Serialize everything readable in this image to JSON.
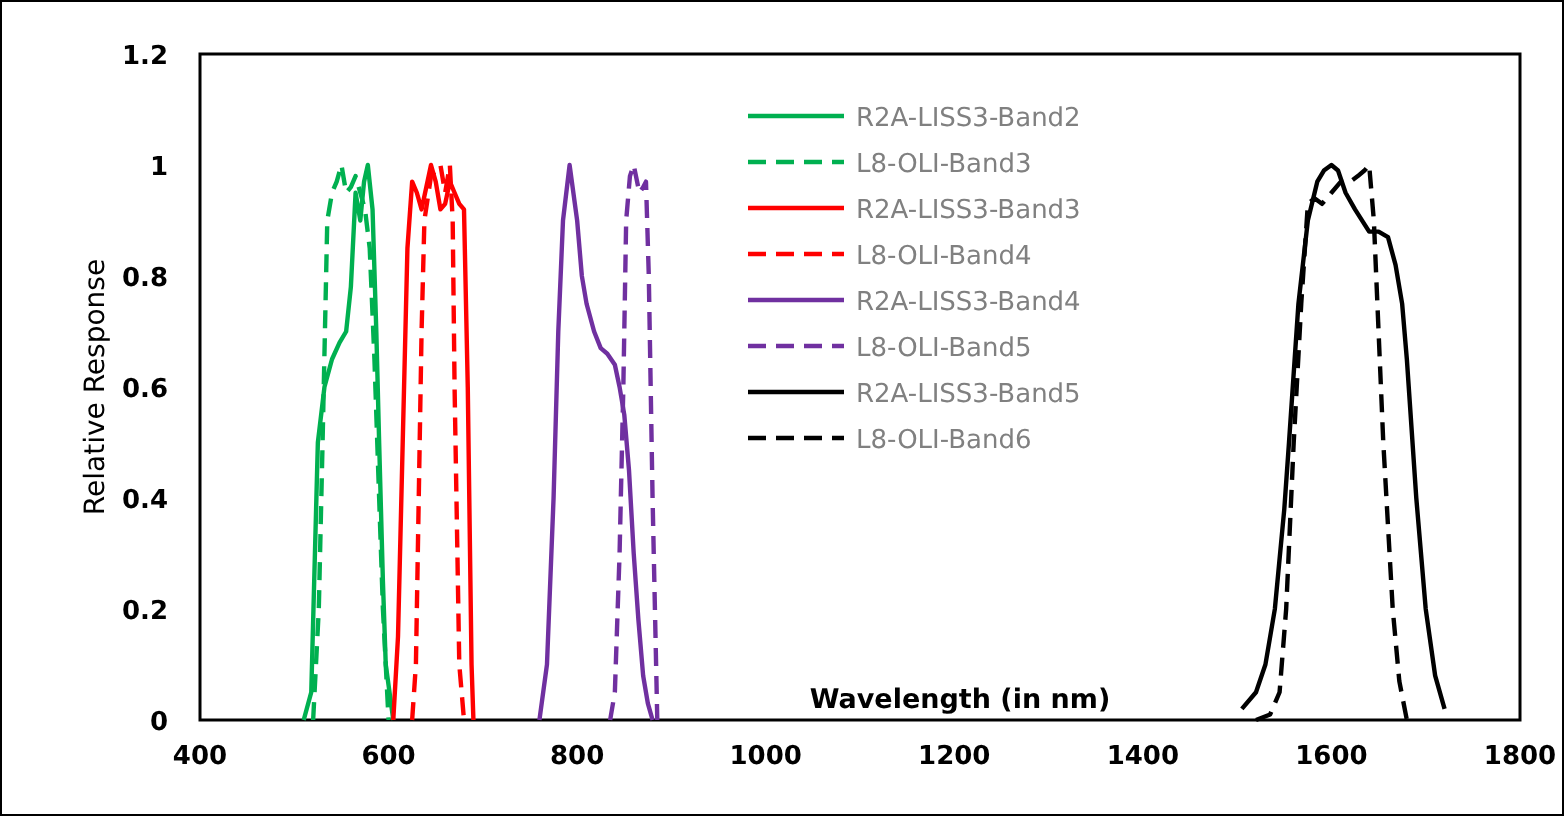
{
  "chart_data": {
    "type": "line",
    "xlabel": "Wavelength (in nm)",
    "ylabel": "Relative Response",
    "xlim": [
      400,
      1800
    ],
    "xticks": [
      400,
      600,
      800,
      1000,
      1200,
      1400,
      1600,
      1800
    ],
    "ylim": [
      0,
      1.2
    ],
    "yticks": [
      0,
      0.2,
      0.4,
      0.6,
      0.8,
      1,
      1.2
    ],
    "grid": false,
    "legend": "top",
    "series": [
      {
        "name": "R2A-LISS3-Band2",
        "color": "#00b050",
        "line_style": "solid",
        "x": [
          510,
          518,
          525,
          532,
          540,
          548,
          555,
          560,
          565,
          570,
          574,
          578,
          583,
          587,
          590,
          594,
          597,
          605
        ],
        "values": [
          0,
          0.05,
          0.5,
          0.6,
          0.65,
          0.68,
          0.7,
          0.78,
          0.95,
          0.9,
          0.97,
          1.0,
          0.92,
          0.7,
          0.5,
          0.25,
          0.1,
          0
        ]
      },
      {
        "name": "L8-OLI-Band3",
        "color": "#00b050",
        "line_style": "dashed",
        "x": [
          520,
          526,
          530,
          535,
          540,
          545,
          550,
          555,
          560,
          565,
          570,
          575,
          580,
          585,
          590,
          594,
          597,
          600
        ],
        "values": [
          0,
          0.2,
          0.5,
          0.9,
          0.95,
          0.97,
          1.0,
          0.95,
          0.96,
          0.98,
          0.95,
          0.92,
          0.85,
          0.65,
          0.4,
          0.2,
          0.1,
          0
        ]
      },
      {
        "name": "R2A-LISS3-Band3",
        "color": "#ff0000",
        "line_style": "solid",
        "x": [
          605,
          610,
          615,
          620,
          625,
          630,
          635,
          640,
          645,
          650,
          655,
          660,
          665,
          670,
          675,
          680,
          684,
          688,
          690
        ],
        "values": [
          0,
          0.15,
          0.5,
          0.85,
          0.97,
          0.95,
          0.92,
          0.96,
          1.0,
          0.97,
          0.92,
          0.93,
          0.97,
          0.95,
          0.93,
          0.92,
          0.6,
          0.1,
          0
        ]
      },
      {
        "name": "L8-OLI-Band4",
        "color": "#ff0000",
        "line_style": "dashed",
        "x": [
          625,
          629,
          632,
          635,
          638,
          645,
          650,
          655,
          660,
          665,
          668,
          670,
          673,
          675,
          680
        ],
        "values": [
          0,
          0.1,
          0.4,
          0.7,
          0.9,
          0.98,
          0.99,
          1.0,
          0.95,
          1.0,
          0.9,
          0.6,
          0.3,
          0.1,
          0
        ]
      },
      {
        "name": "R2A-LISS3-Band4",
        "color": "#7030a0",
        "line_style": "solid",
        "x": [
          760,
          768,
          775,
          780,
          785,
          792,
          800,
          805,
          810,
          818,
          825,
          832,
          840,
          845,
          850,
          855,
          860,
          865,
          870,
          875,
          880
        ],
        "values": [
          0,
          0.1,
          0.4,
          0.7,
          0.9,
          1.0,
          0.9,
          0.8,
          0.75,
          0.7,
          0.67,
          0.66,
          0.64,
          0.6,
          0.55,
          0.45,
          0.3,
          0.18,
          0.08,
          0.03,
          0
        ]
      },
      {
        "name": "L8-OLI-Band5",
        "color": "#7030a0",
        "line_style": "dashed",
        "x": [
          835,
          840,
          845,
          849,
          852,
          856,
          860,
          866,
          870,
          873,
          876,
          880,
          885
        ],
        "values": [
          0,
          0.05,
          0.3,
          0.6,
          0.9,
          0.98,
          1.0,
          0.95,
          0.96,
          0.97,
          0.8,
          0.4,
          0
        ]
      },
      {
        "name": "R2A-LISS3-Band5",
        "color": "#000000",
        "line_style": "solid",
        "x": [
          1505,
          1520,
          1530,
          1540,
          1550,
          1555,
          1565,
          1575,
          1585,
          1592,
          1600,
          1607,
          1615,
          1625,
          1640,
          1650,
          1660,
          1668,
          1675,
          1680,
          1690,
          1700,
          1710,
          1720
        ],
        "values": [
          0.02,
          0.05,
          0.1,
          0.2,
          0.38,
          0.5,
          0.75,
          0.9,
          0.97,
          0.99,
          1.0,
          0.99,
          0.95,
          0.92,
          0.88,
          0.88,
          0.87,
          0.82,
          0.75,
          0.65,
          0.4,
          0.2,
          0.08,
          0.02
        ]
      },
      {
        "name": "L8-OLI-Band6",
        "color": "#000000",
        "line_style": "dashed",
        "x": [
          1520,
          1535,
          1545,
          1552,
          1560,
          1568,
          1575,
          1582,
          1590,
          1600,
          1610,
          1620,
          1628,
          1635,
          1640,
          1645,
          1650,
          1655,
          1660,
          1665,
          1672,
          1680
        ],
        "values": [
          0,
          0.01,
          0.05,
          0.2,
          0.5,
          0.75,
          0.93,
          0.94,
          0.93,
          0.95,
          0.97,
          0.97,
          0.98,
          0.99,
          1.0,
          0.9,
          0.7,
          0.5,
          0.35,
          0.2,
          0.07,
          0
        ]
      }
    ]
  }
}
